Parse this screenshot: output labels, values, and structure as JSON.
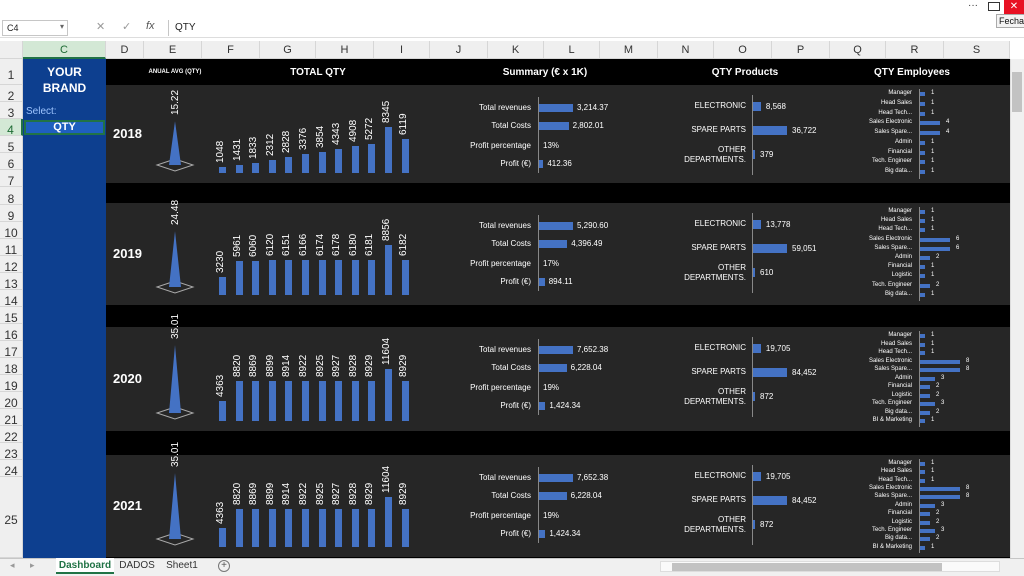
{
  "window": {
    "close_tooltip": "Fechar",
    "more_label": "···",
    "close_glyph": "✕"
  },
  "formula_bar": {
    "name_box": "C4",
    "formula": "QTY",
    "cancel": "✕",
    "enter": "✓",
    "fx": "fx"
  },
  "columns": [
    "C",
    "D",
    "E",
    "F",
    "G",
    "H",
    "I",
    "J",
    "K",
    "L",
    "M",
    "N",
    "O",
    "P",
    "Q",
    "R",
    "S"
  ],
  "rows": [
    "1",
    "2",
    "3",
    "4",
    "5",
    "6",
    "7",
    "8",
    "9",
    "10",
    "11",
    "12",
    "13",
    "14",
    "15",
    "16",
    "17",
    "18",
    "19",
    "20",
    "21",
    "22",
    "23",
    "24",
    "25"
  ],
  "sidebar": {
    "brand_line1": "YOUR",
    "brand_line2": "BRAND",
    "select_label": "Select:",
    "selected_value": "QTY"
  },
  "headers": {
    "annual_avg": "ANUAL AVG (QTY)",
    "total_qty": "TOTAL QTY",
    "summary": "Summary (€ x 1K)",
    "qty_products": "QTY Products",
    "qty_employees": "QTY Employees"
  },
  "summary_labels": [
    "Total revenues",
    "Total Costs",
    "Profit percentage",
    "Profit (€)"
  ],
  "product_labels": [
    "ELECTRONIC",
    "SPARE PARTS",
    "OTHER DEPARTMENTS."
  ],
  "panels": [
    {
      "year": "2018",
      "avg": "15.22",
      "avg_level": 15.22,
      "qty": [
        "1048",
        "1431",
        "1833",
        "2312",
        "2828",
        "3376",
        "3854",
        "4343",
        "4908",
        "5272",
        "8345",
        "6119"
      ],
      "qty_values": [
        1048,
        1431,
        1833,
        2312,
        2828,
        3376,
        3854,
        4343,
        4908,
        5272,
        8345,
        6119
      ],
      "summary": [
        "3,214.37",
        "2,802.01",
        "13%",
        "412.36"
      ],
      "summary_values": [
        3214.37,
        2802.01,
        13,
        412.36
      ],
      "products": [
        "8,568",
        "36,722",
        "379"
      ],
      "product_values": [
        8568,
        36722,
        379
      ],
      "employees": [
        {
          "name": "Manager",
          "v": "1",
          "n": 1
        },
        {
          "name": "Head Sales",
          "v": "1",
          "n": 1
        },
        {
          "name": "Head Tech...",
          "v": "1",
          "n": 1
        },
        {
          "name": "Sales Electronic",
          "v": "4",
          "n": 4
        },
        {
          "name": "Sales Spare...",
          "v": "4",
          "n": 4
        },
        {
          "name": "Admin",
          "v": "1",
          "n": 1
        },
        {
          "name": "Financial",
          "v": "1",
          "n": 1
        },
        {
          "name": "Tech. Engineer",
          "v": "1",
          "n": 1
        },
        {
          "name": "Big data...",
          "v": "1",
          "n": 1
        }
      ]
    },
    {
      "year": "2019",
      "avg": "24.48",
      "avg_level": 24.48,
      "qty": [
        "3230",
        "5961",
        "6060",
        "6120",
        "6151",
        "6166",
        "6174",
        "6178",
        "6180",
        "6181",
        "8856",
        "6182"
      ],
      "qty_values": [
        3230,
        5961,
        6060,
        6120,
        6151,
        6166,
        6174,
        6178,
        6180,
        6181,
        8856,
        6182
      ],
      "summary": [
        "5,290.60",
        "4,396.49",
        "17%",
        "894.11"
      ],
      "summary_values": [
        5290.6,
        4396.49,
        17,
        894.11
      ],
      "products": [
        "13,778",
        "59,051",
        "610"
      ],
      "product_values": [
        13778,
        59051,
        610
      ],
      "employees": [
        {
          "name": "Manager",
          "v": "1",
          "n": 1
        },
        {
          "name": "Head Sales",
          "v": "1",
          "n": 1
        },
        {
          "name": "Head Tech...",
          "v": "1",
          "n": 1
        },
        {
          "name": "Sales Electronic",
          "v": "6",
          "n": 6
        },
        {
          "name": "Sales Spare...",
          "v": "6",
          "n": 6
        },
        {
          "name": "Admin",
          "v": "2",
          "n": 2
        },
        {
          "name": "Financial",
          "v": "1",
          "n": 1
        },
        {
          "name": "Logistic",
          "v": "1",
          "n": 1
        },
        {
          "name": "Tech. Engineer",
          "v": "2",
          "n": 2
        },
        {
          "name": "Big data...",
          "v": "1",
          "n": 1
        }
      ]
    },
    {
      "year": "2020",
      "avg": "35.01",
      "avg_level": 35.01,
      "qty": [
        "4363",
        "8820",
        "8869",
        "8899",
        "8914",
        "8922",
        "8925",
        "8927",
        "8928",
        "8929",
        "11604",
        "8929"
      ],
      "qty_values": [
        4363,
        8820,
        8869,
        8899,
        8914,
        8922,
        8925,
        8927,
        8928,
        8929,
        11604,
        8929
      ],
      "summary": [
        "7,652.38",
        "6,228.04",
        "19%",
        "1,424.34"
      ],
      "summary_values": [
        7652.38,
        6228.04,
        19,
        1424.34
      ],
      "products": [
        "19,705",
        "84,452",
        "872"
      ],
      "product_values": [
        19705,
        84452,
        872
      ],
      "employees": [
        {
          "name": "Manager",
          "v": "1",
          "n": 1
        },
        {
          "name": "Head Sales",
          "v": "1",
          "n": 1
        },
        {
          "name": "Head Tech...",
          "v": "1",
          "n": 1
        },
        {
          "name": "Sales Electronic",
          "v": "8",
          "n": 8
        },
        {
          "name": "Sales Spare...",
          "v": "8",
          "n": 8
        },
        {
          "name": "Admin",
          "v": "3",
          "n": 3
        },
        {
          "name": "Financial",
          "v": "2",
          "n": 2
        },
        {
          "name": "Logistic",
          "v": "2",
          "n": 2
        },
        {
          "name": "Tech. Engineer",
          "v": "3",
          "n": 3
        },
        {
          "name": "Big data...",
          "v": "2",
          "n": 2
        },
        {
          "name": "BI & Marketing",
          "v": "1",
          "n": 1
        }
      ]
    },
    {
      "year": "2021",
      "avg": "35.01",
      "avg_level": 35.01,
      "qty": [
        "4363",
        "8820",
        "8869",
        "8899",
        "8914",
        "8922",
        "8925",
        "8927",
        "8928",
        "8929",
        "11604",
        "8929"
      ],
      "qty_values": [
        4363,
        8820,
        8869,
        8899,
        8914,
        8922,
        8925,
        8927,
        8928,
        8929,
        11604,
        8929
      ],
      "summary": [
        "7,652.38",
        "6,228.04",
        "19%",
        "1,424.34"
      ],
      "summary_values": [
        7652.38,
        6228.04,
        19,
        1424.34
      ],
      "products": [
        "19,705",
        "84,452",
        "872"
      ],
      "product_values": [
        19705,
        84452,
        872
      ],
      "employees": [
        {
          "name": "Manager",
          "v": "1",
          "n": 1
        },
        {
          "name": "Head Sales",
          "v": "1",
          "n": 1
        },
        {
          "name": "Head Tech...",
          "v": "1",
          "n": 1
        },
        {
          "name": "Sales Electronic",
          "v": "8",
          "n": 8
        },
        {
          "name": "Sales Spare...",
          "v": "8",
          "n": 8
        },
        {
          "name": "Admin",
          "v": "3",
          "n": 3
        },
        {
          "name": "Financial",
          "v": "2",
          "n": 2
        },
        {
          "name": "Logistic",
          "v": "2",
          "n": 2
        },
        {
          "name": "Tech. Engineer",
          "v": "3",
          "n": 3
        },
        {
          "name": "Big data...",
          "v": "2",
          "n": 2
        },
        {
          "name": "BI & Marketing",
          "v": "1",
          "n": 1
        }
      ]
    }
  ],
  "tabs": [
    "Dashboard",
    "DADOS",
    "Sheet1"
  ],
  "colors": {
    "accent": "#4472c4",
    "brand_bg": "#0d3f8f",
    "panel_bg": "#262626",
    "excel_green": "#217346"
  }
}
